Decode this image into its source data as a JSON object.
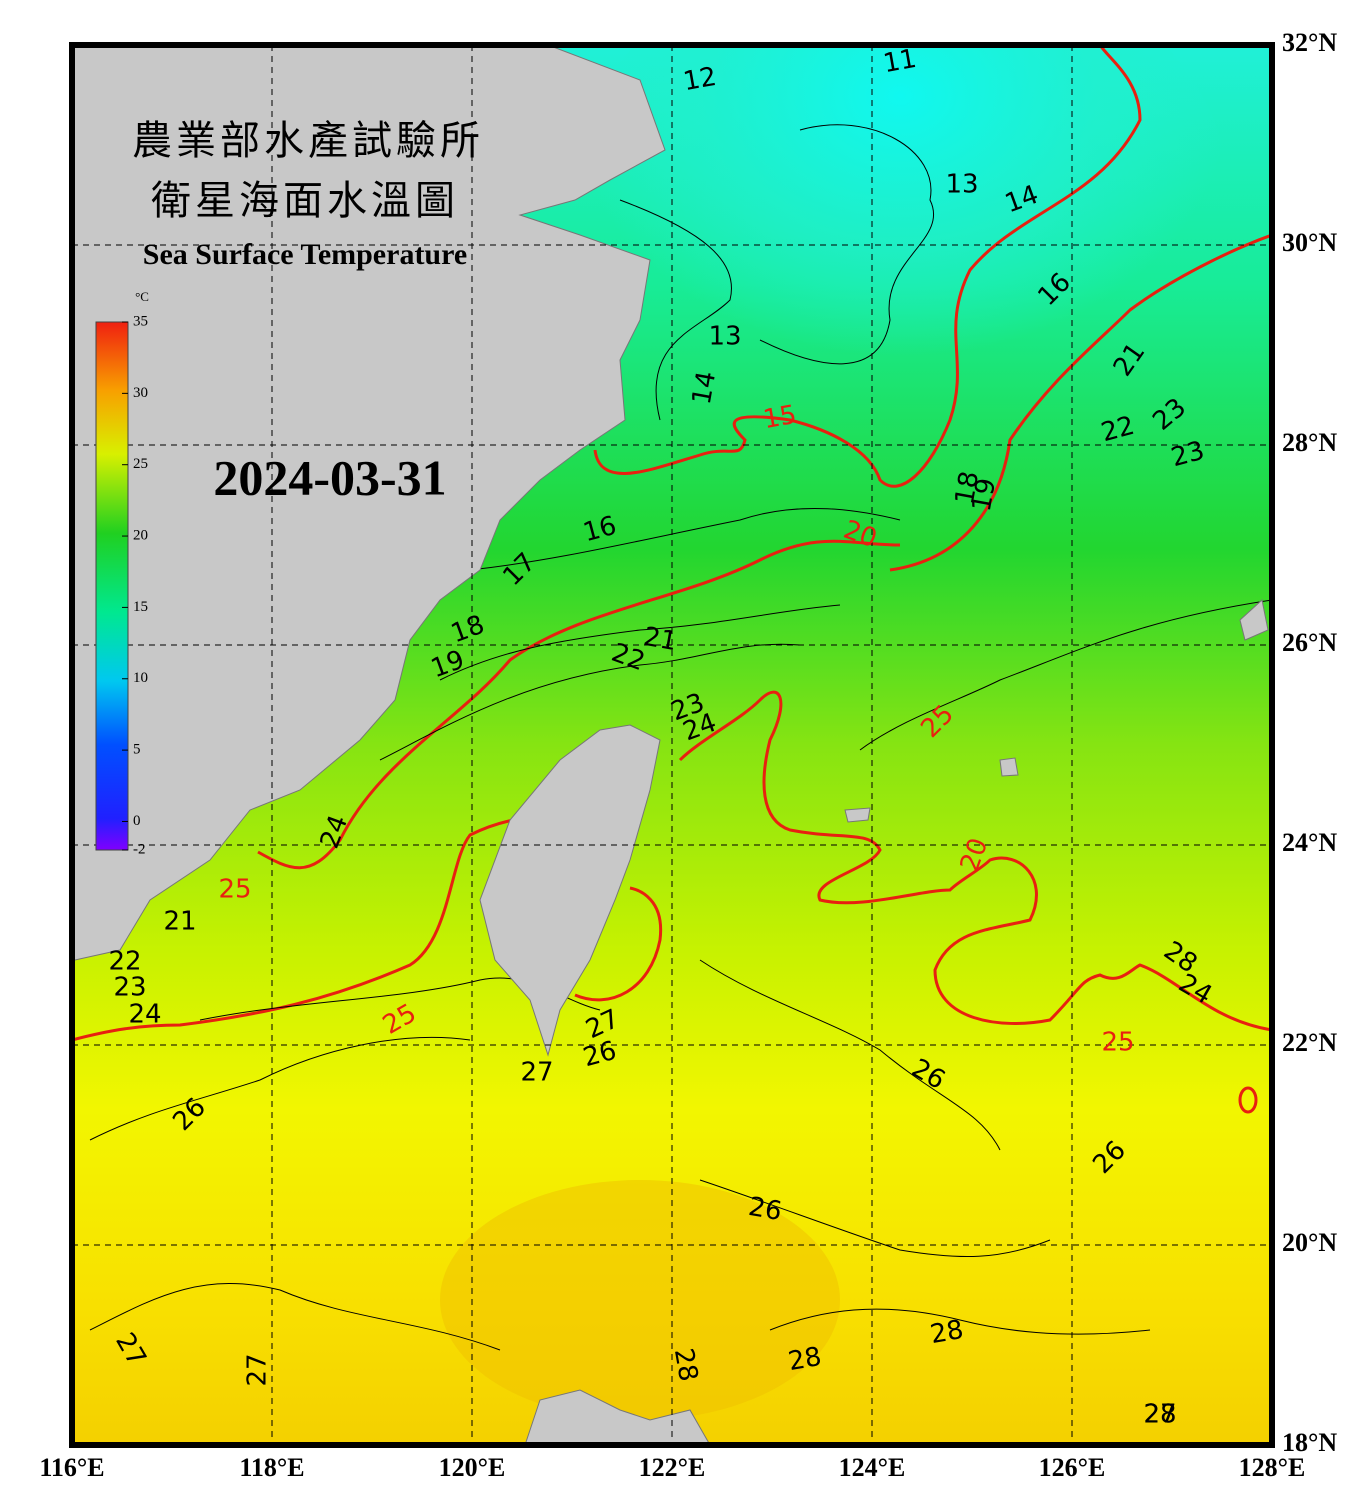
{
  "header": {
    "title_zh_1": "農業部水產試驗所",
    "title_zh_2": "衛星海面水溫圖",
    "title_en": "Sea Surface Temperature",
    "date": "2024-03-31"
  },
  "map": {
    "lonlim": [
      116,
      128
    ],
    "latlim": [
      18,
      32
    ],
    "lon_ticks": [
      {
        "value": 116,
        "label": "116°E"
      },
      {
        "value": 118,
        "label": "118°E"
      },
      {
        "value": 120,
        "label": "120°E"
      },
      {
        "value": 122,
        "label": "122°E"
      },
      {
        "value": 124,
        "label": "124°E"
      },
      {
        "value": 126,
        "label": "126°E"
      },
      {
        "value": 128,
        "label": "128°E"
      }
    ],
    "lat_ticks": [
      {
        "value": 32,
        "label": "32°N"
      },
      {
        "value": 30,
        "label": "30°N"
      },
      {
        "value": 28,
        "label": "28°N"
      },
      {
        "value": 26,
        "label": "26°N"
      },
      {
        "value": 24,
        "label": "24°N"
      },
      {
        "value": 22,
        "label": "22°N"
      },
      {
        "value": 20,
        "label": "20°N"
      },
      {
        "value": 18,
        "label": "18°N"
      }
    ],
    "grid": true,
    "contour_labels": [
      11,
      12,
      13,
      14,
      16,
      13,
      14,
      15,
      21,
      22,
      23,
      23,
      18,
      19,
      16,
      20,
      17,
      18,
      19,
      21,
      22,
      23,
      24,
      25,
      24,
      20,
      25,
      21,
      22,
      23,
      24,
      25,
      27,
      26,
      27,
      28,
      24,
      25,
      26,
      26,
      26,
      26,
      27,
      27,
      28,
      28,
      28,
      27,
      28
    ]
  },
  "colorbar": {
    "unit": "°C",
    "range": [
      -2,
      35
    ],
    "ticks": [
      35,
      30,
      25,
      20,
      15,
      10,
      5,
      0,
      -2
    ]
  }
}
